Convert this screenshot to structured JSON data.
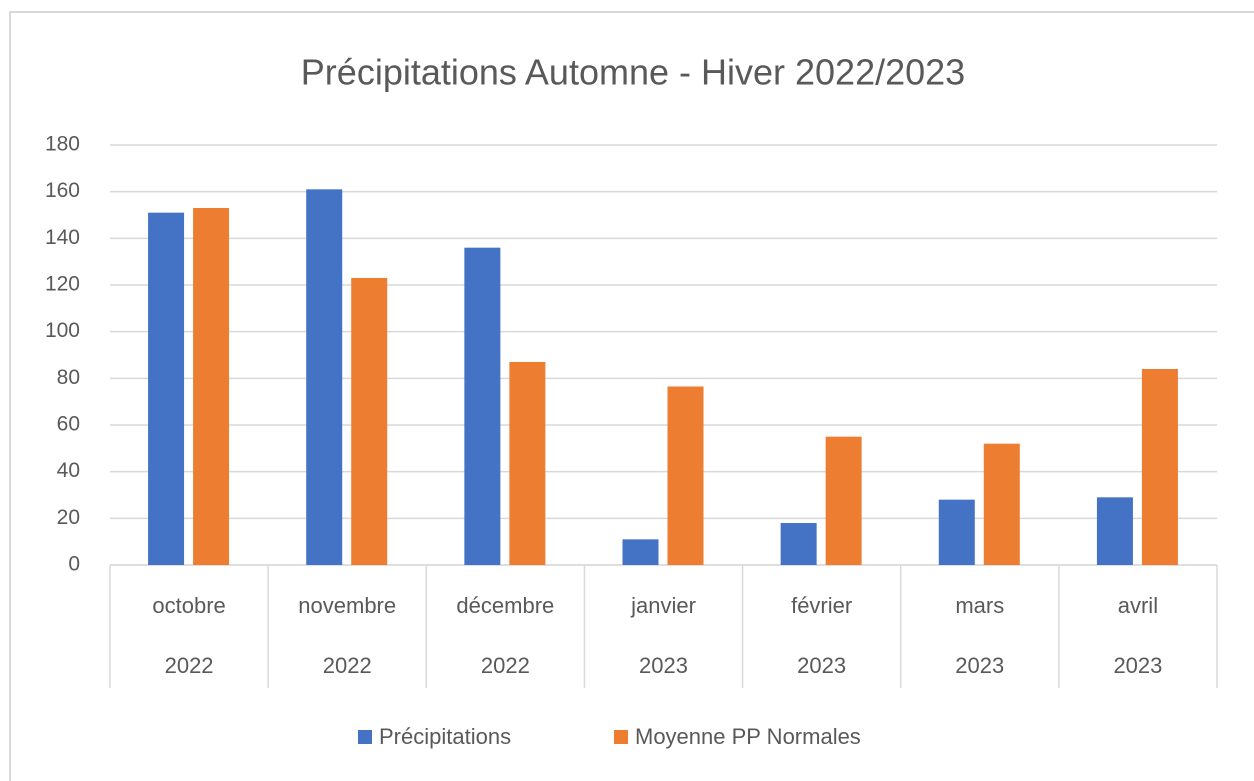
{
  "chart_data": {
    "type": "bar",
    "title": "Précipitations Automne - Hiver 2022/2023",
    "categories": [
      "octobre",
      "novembre",
      "décembre",
      "janvier",
      "février",
      "mars",
      "avril"
    ],
    "category_years": [
      "2022",
      "2022",
      "2022",
      "2023",
      "2023",
      "2023",
      "2023"
    ],
    "series": [
      {
        "name": "Précipitations",
        "color": "#4472c4",
        "values": [
          151,
          161,
          136,
          11,
          18,
          28,
          29
        ]
      },
      {
        "name": "Moyenne PP Normales",
        "color": "#ed7d31",
        "values": [
          153,
          123,
          87,
          76.5,
          55,
          52,
          84
        ]
      }
    ],
    "ylim": [
      0,
      180
    ],
    "yticks": [
      0,
      20,
      40,
      60,
      80,
      100,
      120,
      140,
      160,
      180
    ],
    "grid": true,
    "legend": "bottom"
  }
}
